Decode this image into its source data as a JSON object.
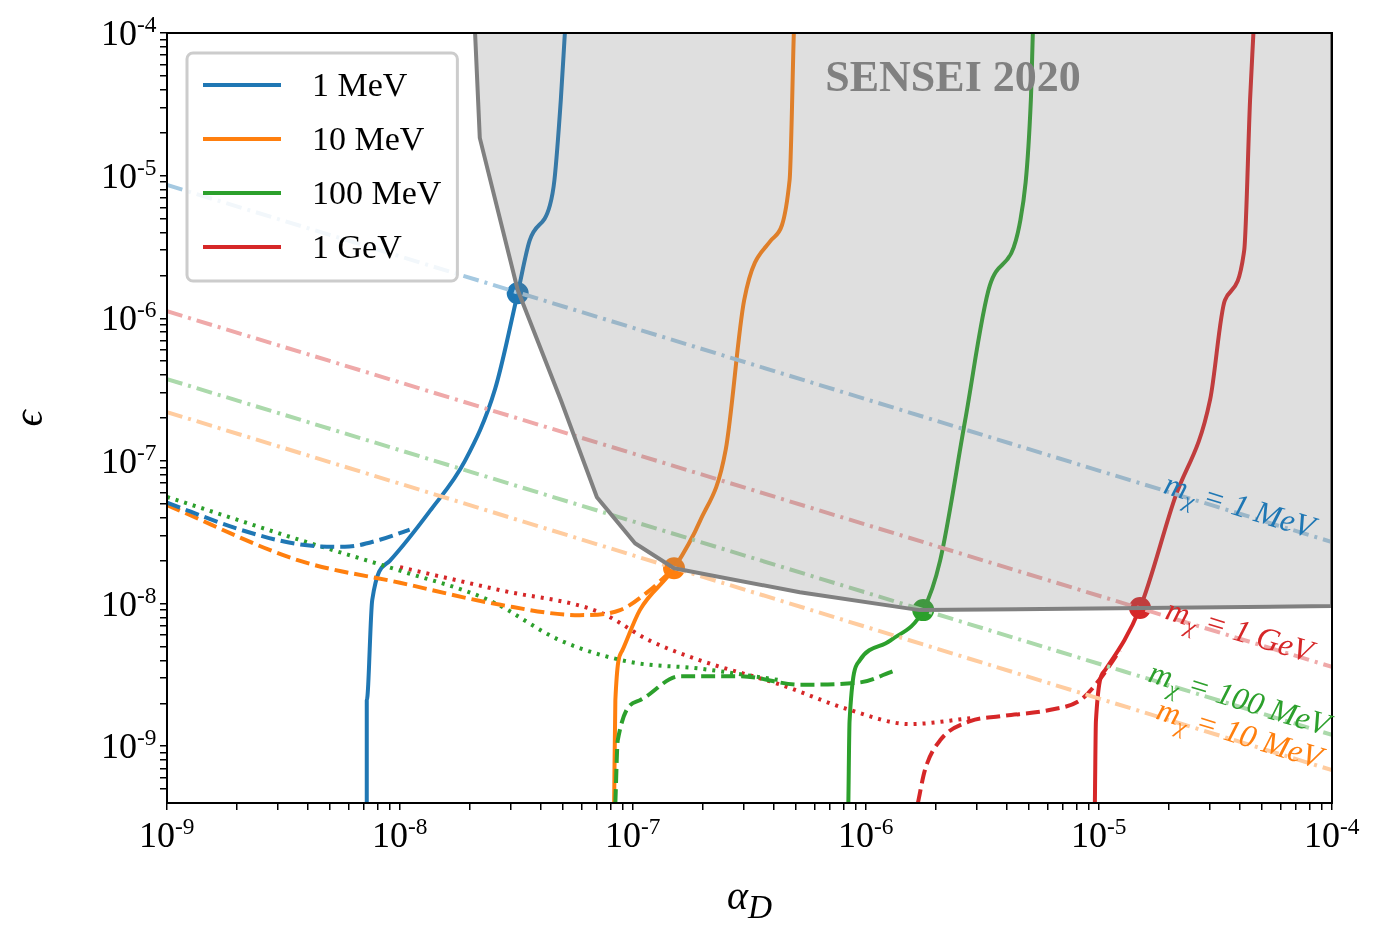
{
  "chart_data": {
    "type": "line",
    "xlabel": "α$_{D}$",
    "ylabel": "ϵ",
    "log": "xy",
    "grid": false,
    "legend": "top left",
    "xlim": [
      1e-09,
      0.0001
    ],
    "ylim": [
      4e-10,
      0.0001
    ],
    "xticks": [
      {
        "value": 1e-09,
        "label": "10$^{-9}$"
      },
      {
        "value": 2e-09,
        "label": null
      },
      {
        "value": 3e-09,
        "label": null
      },
      {
        "value": 4e-09,
        "label": null
      },
      {
        "value": 5e-09,
        "label": null
      },
      {
        "value": 6e-09,
        "label": null
      },
      {
        "value": 7e-09,
        "label": null
      },
      {
        "value": 8e-09,
        "label": null
      },
      {
        "value": 9e-09,
        "label": null
      },
      {
        "value": 1e-08,
        "label": "10$^{-8}$"
      },
      {
        "value": 2e-08,
        "label": null
      },
      {
        "value": 3e-08,
        "label": null
      },
      {
        "value": 4e-08,
        "label": null
      },
      {
        "value": 5e-08,
        "label": null
      },
      {
        "value": 6e-08,
        "label": null
      },
      {
        "value": 7e-08,
        "label": null
      },
      {
        "value": 8e-08,
        "label": null
      },
      {
        "value": 9e-08,
        "label": null
      },
      {
        "value": 1e-07,
        "label": "10$^{-7}$"
      },
      {
        "value": 2e-07,
        "label": null
      },
      {
        "value": 3e-07,
        "label": null
      },
      {
        "value": 4e-07,
        "label": null
      },
      {
        "value": 5e-07,
        "label": null
      },
      {
        "value": 6e-07,
        "label": null
      },
      {
        "value": 7e-07,
        "label": null
      },
      {
        "value": 8e-07,
        "label": null
      },
      {
        "value": 9e-07,
        "label": null
      },
      {
        "value": 1e-06,
        "label": "10$^{-6}$"
      },
      {
        "value": 2e-06,
        "label": null
      },
      {
        "value": 3e-06,
        "label": null
      },
      {
        "value": 4e-06,
        "label": null
      },
      {
        "value": 5e-06,
        "label": null
      },
      {
        "value": 6e-06,
        "label": null
      },
      {
        "value": 7e-06,
        "label": null
      },
      {
        "value": 8e-06,
        "label": null
      },
      {
        "value": 9e-06,
        "label": null
      },
      {
        "value": 1e-05,
        "label": "10$^{-5}$"
      },
      {
        "value": 2e-05,
        "label": null
      },
      {
        "value": 3e-05,
        "label": null
      },
      {
        "value": 4e-05,
        "label": null
      },
      {
        "value": 5e-05,
        "label": null
      },
      {
        "value": 6e-05,
        "label": null
      },
      {
        "value": 7e-05,
        "label": null
      },
      {
        "value": 8e-05,
        "label": null
      },
      {
        "value": 9e-05,
        "label": null
      },
      {
        "value": 0.0001,
        "label": "10$^{-4}$"
      }
    ],
    "yticks": [
      {
        "value": 5e-10,
        "label": null
      },
      {
        "value": 6e-10,
        "label": null
      },
      {
        "value": 7e-10,
        "label": null
      },
      {
        "value": 8e-10,
        "label": null
      },
      {
        "value": 9e-10,
        "label": null
      },
      {
        "value": 1e-09,
        "label": "10$^{-9}$"
      },
      {
        "value": 2e-09,
        "label": null
      },
      {
        "value": 3e-09,
        "label": null
      },
      {
        "value": 4e-09,
        "label": null
      },
      {
        "value": 5e-09,
        "label": null
      },
      {
        "value": 6e-09,
        "label": null
      },
      {
        "value": 7e-09,
        "label": null
      },
      {
        "value": 8e-09,
        "label": null
      },
      {
        "value": 9e-09,
        "label": null
      },
      {
        "value": 1e-08,
        "label": "10$^{-8}$"
      },
      {
        "value": 2e-08,
        "label": null
      },
      {
        "value": 3e-08,
        "label": null
      },
      {
        "value": 4e-08,
        "label": null
      },
      {
        "value": 5e-08,
        "label": null
      },
      {
        "value": 6e-08,
        "label": null
      },
      {
        "value": 7e-08,
        "label": null
      },
      {
        "value": 8e-08,
        "label": null
      },
      {
        "value": 9e-08,
        "label": null
      },
      {
        "value": 1e-07,
        "label": "10$^{-7}$"
      },
      {
        "value": 2e-07,
        "label": null
      },
      {
        "value": 3e-07,
        "label": null
      },
      {
        "value": 4e-07,
        "label": null
      },
      {
        "value": 5e-07,
        "label": null
      },
      {
        "value": 6e-07,
        "label": null
      },
      {
        "value": 7e-07,
        "label": null
      },
      {
        "value": 8e-07,
        "label": null
      },
      {
        "value": 9e-07,
        "label": null
      },
      {
        "value": 1e-06,
        "label": "10$^{-6}$"
      },
      {
        "value": 2e-06,
        "label": null
      },
      {
        "value": 3e-06,
        "label": null
      },
      {
        "value": 4e-06,
        "label": null
      },
      {
        "value": 5e-06,
        "label": null
      },
      {
        "value": 6e-06,
        "label": null
      },
      {
        "value": 7e-06,
        "label": null
      },
      {
        "value": 8e-06,
        "label": null
      },
      {
        "value": 9e-06,
        "label": null
      },
      {
        "value": 1e-05,
        "label": "10$^{-5}$"
      },
      {
        "value": 2e-05,
        "label": null
      },
      {
        "value": 3e-05,
        "label": null
      },
      {
        "value": 4e-05,
        "label": null
      },
      {
        "value": 5e-05,
        "label": null
      },
      {
        "value": 6e-05,
        "label": null
      },
      {
        "value": 7e-05,
        "label": null
      },
      {
        "value": 8e-05,
        "label": null
      },
      {
        "value": 9e-05,
        "label": null
      },
      {
        "value": 0.0001,
        "label": "10$^{-4}$"
      }
    ],
    "annotations": [
      "SENSEI 2020",
      "m$_{χ}$ = 1 MeV",
      "m$_{χ}$ = 1 GeV",
      "m$_{χ}$ = 100 MeV",
      "m$_{χ}$ = 10 MeV"
    ],
    "series": [
      {
        "type": "area",
        "color": "#808080",
        "line_style": "solid",
        "x": [
          2.1e-08,
          2.2e-08,
          3.2e-08,
          4.9e-08,
          7e-08,
          1.02e-07,
          1.5e-07,
          5.2e-07,
          1.7e-06,
          0.0001,
          0.0001
        ],
        "values": [
          0.0001,
          1.84e-05,
          1.58e-06,
          2.67e-07,
          5.57e-08,
          2.65e-08,
          1.77e-08,
          1.2e-08,
          9e-09,
          9.6e-09,
          0.0001
        ]
      },
      {
        "type": "line",
        "color": "#a5c9e1",
        "line_style": "dashdot",
        "x": [
          1e-09,
          0.0001
        ],
        "values": [
          8.6e-06,
          2.7e-08
        ]
      },
      {
        "type": "line",
        "color": "#efa9a9",
        "line_style": "dashdot",
        "x": [
          1e-09,
          0.0001
        ],
        "values": [
          1.12e-06,
          3.6e-09
        ]
      },
      {
        "type": "line",
        "color": "#abd9ab",
        "line_style": "dashdot",
        "x": [
          1e-09,
          0.0001
        ],
        "values": [
          3.75e-07,
          1.2e-09
        ]
      },
      {
        "type": "line",
        "color": "#ffcc9f",
        "line_style": "dashdot",
        "x": [
          1e-09,
          0.0001
        ],
        "values": [
          2.2e-07,
          6.8e-10
        ]
      },
      {
        "type": "line",
        "color": "#1f77b4",
        "line_style": "dashed",
        "x": [
          1e-09,
          2.06e-09,
          3.7e-09,
          5.8e-09,
          8.2e-09,
          1.1e-08
        ],
        "values": [
          5.1e-08,
          3.3e-08,
          2.6e-08,
          2.5e-08,
          2.8e-08,
          3.3e-08
        ]
      },
      {
        "type": "line",
        "color": "#ff7f0e",
        "line_style": "dashed",
        "x": [
          1e-09,
          3.7e-09,
          1e-08,
          2.7e-08,
          5.9e-08,
          8.8e-08,
          1.18e-07,
          1.5e-07
        ],
        "values": [
          4.9e-08,
          2e-08,
          1.4e-08,
          9.8e-09,
          8.3e-09,
          9e-09,
          1.24e-08,
          1.77e-08
        ]
      },
      {
        "type": "line",
        "color": "#2ca02c",
        "line_style": "dotted",
        "x": [
          1e-09,
          3.7e-09,
          1e-08,
          2.4e-08,
          4.9e-08,
          9.7e-08,
          1.94e-07,
          4.3e-07
        ],
        "values": [
          5.6e-08,
          2.8e-08,
          1.7e-08,
          1.06e-08,
          5.5e-09,
          3.9e-09,
          3.5e-09,
          2.9e-09
        ]
      },
      {
        "type": "line",
        "color": "#2ca02c",
        "line_style": "dashed",
        "x": [
          8.4e-08,
          8.6e-08,
          1.07e-07,
          1.59e-07,
          2.88e-07,
          5.2e-07,
          9.4e-07,
          1.33e-06
        ],
        "values": [
          4e-10,
          1.1e-09,
          2.1e-09,
          3.1e-09,
          3.1e-09,
          2.7e-09,
          2.8e-09,
          3.4e-09
        ]
      },
      {
        "type": "line",
        "color": "#d62728",
        "line_style": "dotted",
        "x": [
          1e-08,
          2.7e-08,
          7.2e-08,
          1.18e-07,
          1.94e-07,
          4.3e-07,
          8.5e-07,
          1.54e-06,
          2.8e-06
        ],
        "values": [
          1.8e-08,
          1.24e-08,
          8.7e-09,
          5.5e-09,
          4e-09,
          2.7e-09,
          1.8e-09,
          1.43e-09,
          1.57e-09
        ]
      },
      {
        "type": "line",
        "color": "#d62728",
        "line_style": "dashed",
        "x": [
          1.67e-06,
          1.79e-06,
          2.08e-06,
          2.8e-06,
          3.76e-06,
          6.2e-06,
          8.3e-06,
          1e-05,
          1.23e-05
        ],
        "values": [
          4e-10,
          6.8e-10,
          1.1e-09,
          1.5e-09,
          1.62e-09,
          1.8e-09,
          2.1e-09,
          2.9e-09,
          4.7e-09
        ]
      },
      {
        "type": "line",
        "name": "1 MeV",
        "color": "#1f77b4",
        "line_style": "solid",
        "x": [
          7.2e-09,
          7.2e-09,
          7.6e-09,
          9.06e-09,
          1.35e-08,
          1.9e-08,
          2.56e-08,
          3.2e-08,
          3.6e-08,
          4.4e-08,
          4.6e-08,
          4.9e-08,
          5.1e-08
        ],
        "values": [
          4e-10,
          2.1e-09,
          1.06e-08,
          2e-08,
          4.5e-08,
          1e-07,
          3.2e-07,
          1.5e-06,
          3.5e-06,
          6.2e-06,
          9.3e-06,
          3.4e-05,
          0.0001
        ]
      },
      {
        "type": "line",
        "name": "10 MeV",
        "color": "#ff7f0e",
        "line_style": "solid",
        "x": [
          8.3e-08,
          8.4e-08,
          9e-08,
          1.07e-07,
          1.5e-07,
          1.94e-07,
          2.5e-07,
          3e-07,
          3.9e-07,
          4.7e-07,
          4.9e-07
        ],
        "values": [
          4e-10,
          2.1e-09,
          4.7e-09,
          9e-09,
          1.77e-08,
          3.8e-08,
          1.2e-07,
          1.34e-06,
          3.5e-06,
          9.3e-06,
          0.0001
        ]
      },
      {
        "type": "line",
        "name": "100 MeV",
        "color": "#2ca02c",
        "line_style": "solid",
        "x": [
          8.4e-07,
          8.5e-07,
          9.4e-07,
          1.27e-06,
          1.76e-06,
          2.08e-06,
          2.66e-06,
          3.4e-06,
          4.6e-06,
          5.1e-06,
          5.2e-06
        ],
        "values": [
          4e-10,
          1.5e-09,
          4e-09,
          5.5e-09,
          9e-09,
          2e-08,
          1.9e-07,
          1.7e-06,
          4.9e-06,
          3.4e-05,
          0.0001
        ]
      },
      {
        "type": "line",
        "name": "1 GeV",
        "color": "#d62728",
        "line_style": "solid",
        "x": [
          9.6e-06,
          9.7e-06,
          1.06e-05,
          1.5e-05,
          2.1e-05,
          3e-05,
          3.47e-05,
          4.2e-05,
          4.45e-05,
          4.6e-05
        ],
        "values": [
          4e-10,
          1.5e-09,
          3.4e-09,
          9.3e-09,
          5.3e-08,
          2.7e-07,
          1.34e-06,
          3e-06,
          3.4e-05,
          0.0001
        ]
      },
      {
        "type": "scatter",
        "marker": "circle",
        "colors": [
          "#1f77b4",
          "#ff7f0e",
          "#2ca02c",
          "#d62728"
        ],
        "x": [
          3.2e-08,
          1.5e-07,
          1.76e-06,
          1.5e-05
        ],
        "values": [
          1.5e-06,
          1.77e-08,
          9e-09,
          9.3e-09
        ]
      }
    ]
  }
}
